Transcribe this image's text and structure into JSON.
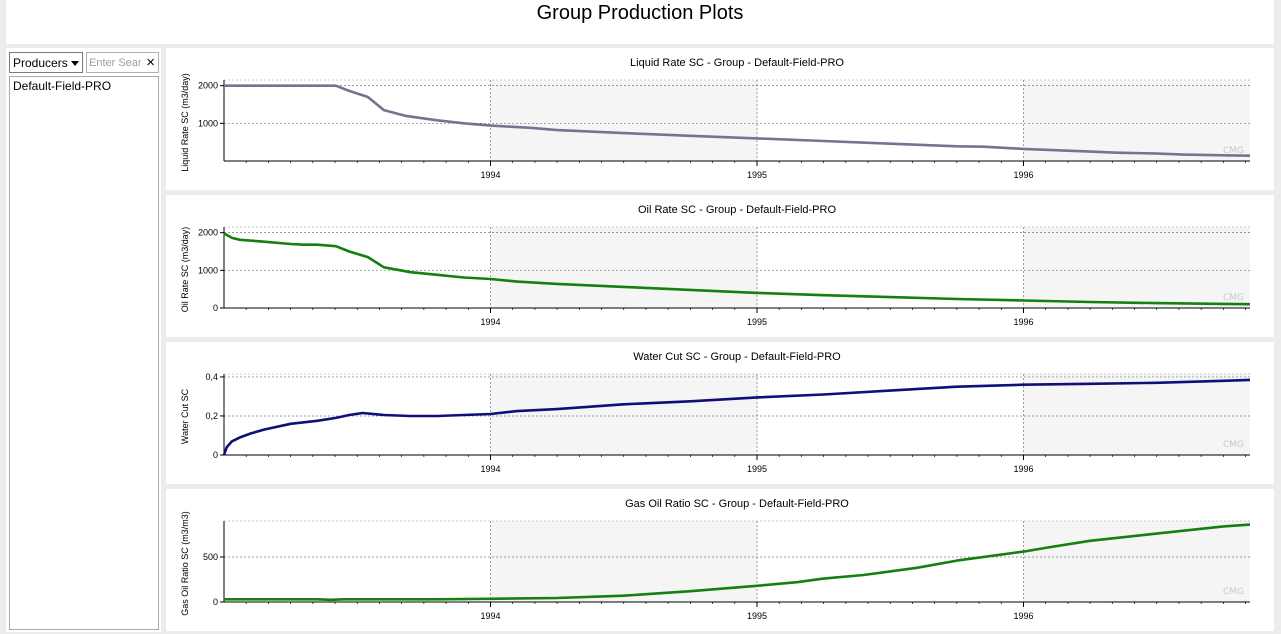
{
  "header": {
    "title": "Group Production Plots"
  },
  "sidebar": {
    "selector_value": "Producers",
    "search_placeholder": "Enter Search",
    "clear_label": "×",
    "items": [
      {
        "label": "Default-Field-PRO"
      }
    ]
  },
  "watermark": "CMG",
  "colors": {
    "liquid": "#7a7090",
    "oil": "#138010",
    "water": "#0f0f78",
    "gas": "#138010",
    "shade": "#f5f5f5"
  },
  "chart_data": [
    {
      "type": "line",
      "title": "Liquid Rate SC - Group - Default-Field-PRO",
      "ylabel": "Liquid Rate SC (m3/day)",
      "xlim": [
        1993.0,
        1996.85
      ],
      "ylim": [
        0,
        2150
      ],
      "x_ticks": [
        1994,
        1995,
        1996
      ],
      "y_ticks": [
        1000,
        2000
      ],
      "y_tick_labels": [
        "1000",
        "2000"
      ],
      "series": [
        {
          "color": "#7a7090",
          "x": [
            1993.0,
            1993.42,
            1993.47,
            1993.54,
            1993.6,
            1993.68,
            1993.8,
            1993.9,
            1994.0,
            1994.15,
            1994.25,
            1994.5,
            1994.75,
            1995.0,
            1995.25,
            1995.5,
            1995.75,
            1995.85,
            1996.0,
            1996.25,
            1996.35,
            1996.5,
            1996.6,
            1996.75,
            1996.85
          ],
          "y": [
            2000,
            2000,
            1860,
            1700,
            1350,
            1200,
            1080,
            1000,
            940,
            880,
            820,
            740,
            670,
            600,
            530,
            460,
            390,
            380,
            320,
            250,
            220,
            200,
            170,
            150,
            140
          ]
        }
      ]
    },
    {
      "type": "line",
      "title": "Oil Rate SC - Group - Default-Field-PRO",
      "ylabel": "Oil Rate SC (m3/day)",
      "xlim": [
        1993.0,
        1996.85
      ],
      "ylim": [
        0,
        2150
      ],
      "x_ticks": [
        1994,
        1995,
        1996
      ],
      "y_ticks": [
        0,
        1000,
        2000
      ],
      "y_tick_labels": [
        "0",
        "1000",
        "2000"
      ],
      "series": [
        {
          "color": "#138010",
          "x": [
            1993.0,
            1993.03,
            1993.06,
            1993.15,
            1993.25,
            1993.3,
            1993.35,
            1993.42,
            1993.47,
            1993.54,
            1993.6,
            1993.7,
            1993.8,
            1993.9,
            1994.0,
            1994.1,
            1994.25,
            1994.5,
            1994.75,
            1995.0,
            1995.25,
            1995.5,
            1995.75,
            1996.0,
            1996.25,
            1996.5,
            1996.75,
            1996.85
          ],
          "y": [
            1980,
            1860,
            1810,
            1760,
            1700,
            1680,
            1680,
            1640,
            1500,
            1350,
            1080,
            950,
            880,
            810,
            770,
            700,
            640,
            560,
            480,
            400,
            340,
            290,
            240,
            200,
            160,
            130,
            110,
            100
          ]
        }
      ]
    },
    {
      "type": "line",
      "title": "Water Cut SC - Group - Default-Field-PRO",
      "ylabel": "Water Cut SC",
      "xlim": [
        1993.0,
        1996.85
      ],
      "ylim": [
        0,
        0.415
      ],
      "x_ticks": [
        1994,
        1995,
        1996
      ],
      "y_ticks": [
        0,
        0.2,
        0.4
      ],
      "y_tick_labels": [
        "0",
        "0,2",
        "0,4"
      ],
      "series": [
        {
          "color": "#0f0f78",
          "x": [
            1993.0,
            1993.01,
            1993.03,
            1993.06,
            1993.1,
            1993.15,
            1993.25,
            1993.35,
            1993.42,
            1993.47,
            1993.52,
            1993.6,
            1993.7,
            1993.8,
            1993.9,
            1994.0,
            1994.1,
            1994.25,
            1994.5,
            1994.75,
            1995.0,
            1995.25,
            1995.5,
            1995.75,
            1996.0,
            1996.25,
            1996.5,
            1996.75,
            1996.85
          ],
          "y": [
            0.0,
            0.04,
            0.07,
            0.09,
            0.11,
            0.13,
            0.16,
            0.175,
            0.19,
            0.205,
            0.215,
            0.205,
            0.2,
            0.2,
            0.205,
            0.21,
            0.225,
            0.235,
            0.26,
            0.275,
            0.295,
            0.31,
            0.33,
            0.35,
            0.36,
            0.365,
            0.37,
            0.38,
            0.385
          ]
        }
      ]
    },
    {
      "type": "line",
      "title": "Gas Oil Ratio SC - Group - Default-Field-PRO",
      "ylabel": "Gas Oil Ratio SC (m3/m3)",
      "xlim": [
        1993.0,
        1996.85
      ],
      "ylim": [
        0,
        900
      ],
      "x_ticks": [
        1994,
        1995,
        1996
      ],
      "y_ticks": [
        0,
        500
      ],
      "y_tick_labels": [
        "0",
        "500"
      ],
      "series": [
        {
          "color": "#138010",
          "x": [
            1993.0,
            1993.25,
            1993.35,
            1993.4,
            1993.45,
            1993.6,
            1993.8,
            1994.0,
            1994.25,
            1994.5,
            1994.75,
            1995.0,
            1995.15,
            1995.25,
            1995.4,
            1995.6,
            1995.75,
            1995.9,
            1996.0,
            1996.1,
            1996.25,
            1996.5,
            1996.75,
            1996.85
          ],
          "y": [
            30,
            30,
            30,
            25,
            30,
            30,
            30,
            35,
            45,
            70,
            120,
            180,
            220,
            260,
            300,
            380,
            460,
            520,
            560,
            610,
            680,
            760,
            840,
            860
          ]
        }
      ]
    }
  ]
}
